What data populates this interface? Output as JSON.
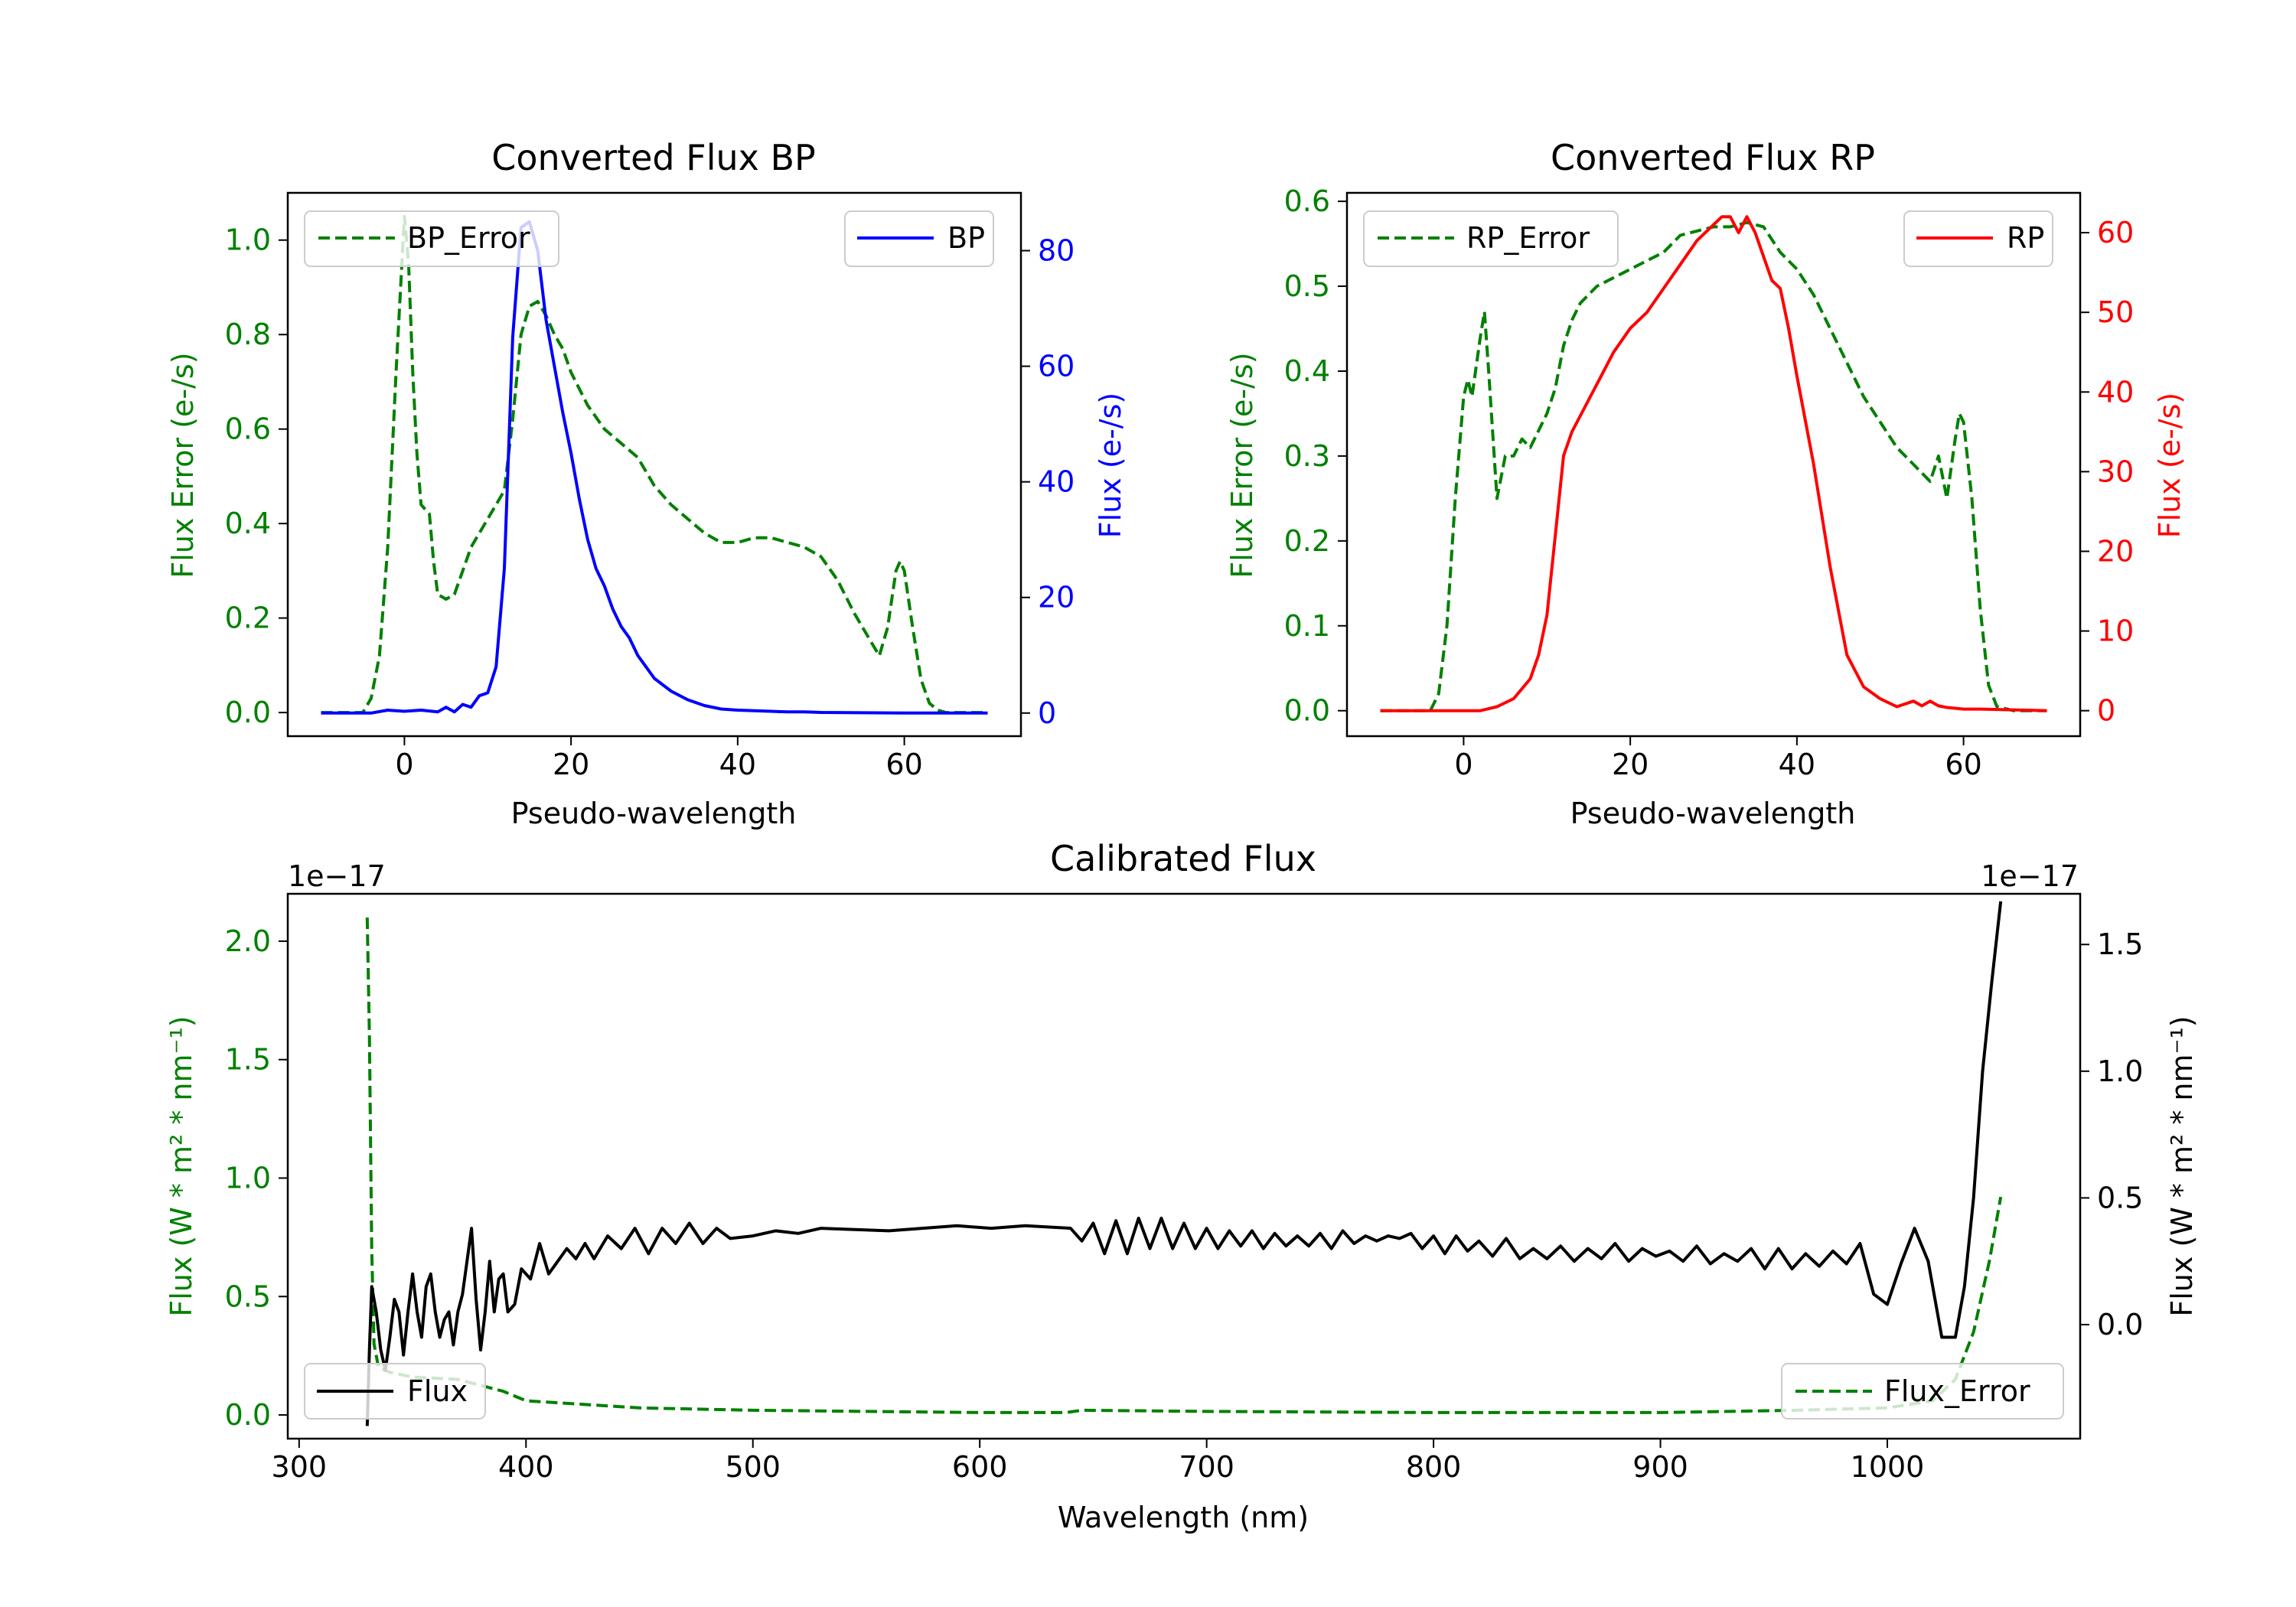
{
  "colors": {
    "error": "#008000",
    "bp": "#0000ff",
    "rp": "#ff0000",
    "flux": "#000000",
    "axis": "#000000",
    "legend_edge": "#cccccc"
  },
  "chart_data": [
    {
      "id": "bp",
      "type": "line",
      "title": "Converted Flux BP",
      "xlabel": "Pseudo-wavelength",
      "ylabel_left": "Flux Error (e-/s)",
      "ylabel_right": "Flux (e-/s)",
      "xlim": [
        -14,
        74
      ],
      "ylim_left": [
        -0.05,
        1.1
      ],
      "ylim_right": [
        -4,
        90
      ],
      "xticks": [
        0,
        20,
        40,
        60
      ],
      "xtick_labels": [
        "0",
        "20",
        "40",
        "60"
      ],
      "yticks_left": [
        0.0,
        0.2,
        0.4,
        0.6,
        0.8,
        1.0
      ],
      "ytick_labels_left": [
        "0.0",
        "0.2",
        "0.4",
        "0.6",
        "0.8",
        "1.0"
      ],
      "yticks_right": [
        0,
        20,
        40,
        60,
        80
      ],
      "ytick_labels_right": [
        "0",
        "20",
        "40",
        "60",
        "80"
      ],
      "legend_left": {
        "label": "BP_Error",
        "placement": "upper left"
      },
      "legend_right": {
        "label": "BP",
        "placement": "upper right"
      },
      "series": [
        {
          "name": "BP_Error",
          "axis": "left",
          "style": "dashed",
          "color": "#008000",
          "x": [
            -10,
            -5,
            -4,
            -3,
            -2,
            -1,
            0,
            0.5,
            1,
            1.5,
            2,
            3,
            3.5,
            4,
            5,
            6,
            7,
            8,
            9,
            10,
            11,
            12,
            13,
            14,
            15,
            16,
            17,
            18,
            19,
            20,
            22,
            24,
            26,
            28,
            30,
            32,
            34,
            36,
            38,
            40,
            42,
            44,
            46,
            48,
            50,
            52,
            54,
            56,
            57,
            58,
            59,
            59.5,
            60,
            61,
            62,
            63,
            64,
            65,
            66,
            68,
            70
          ],
          "y": [
            0.0,
            0.0,
            0.03,
            0.12,
            0.35,
            0.72,
            1.05,
            0.95,
            0.72,
            0.55,
            0.44,
            0.42,
            0.32,
            0.25,
            0.24,
            0.25,
            0.3,
            0.35,
            0.38,
            0.41,
            0.44,
            0.47,
            0.62,
            0.8,
            0.86,
            0.87,
            0.84,
            0.8,
            0.77,
            0.72,
            0.65,
            0.6,
            0.57,
            0.54,
            0.48,
            0.44,
            0.41,
            0.38,
            0.36,
            0.36,
            0.37,
            0.37,
            0.36,
            0.35,
            0.33,
            0.28,
            0.21,
            0.15,
            0.12,
            0.18,
            0.3,
            0.32,
            0.3,
            0.18,
            0.07,
            0.02,
            0.005,
            0.0,
            0.0,
            0.0,
            0.0
          ]
        },
        {
          "name": "BP",
          "axis": "right",
          "style": "solid",
          "color": "#0000ff",
          "x": [
            -10,
            -4,
            -2,
            0,
            2,
            4,
            5,
            6,
            7,
            8,
            9,
            10,
            11,
            12,
            13,
            14,
            15,
            16,
            17,
            18,
            19,
            20,
            21,
            22,
            23,
            24,
            25,
            26,
            27,
            28,
            29,
            30,
            32,
            34,
            36,
            38,
            40,
            42,
            44,
            46,
            48,
            50,
            60,
            70
          ],
          "y": [
            0,
            0,
            0.5,
            0.3,
            0.5,
            0.2,
            1,
            0.2,
            1.5,
            1,
            3,
            3.5,
            8,
            25,
            65,
            84,
            85,
            80,
            68,
            60,
            52,
            45,
            37,
            30,
            25,
            22,
            18,
            15,
            13,
            10,
            8,
            6,
            3.8,
            2.3,
            1.3,
            0.7,
            0.5,
            0.4,
            0.3,
            0.2,
            0.2,
            0.1,
            0,
            0
          ]
        }
      ]
    },
    {
      "id": "rp",
      "type": "line",
      "title": "Converted Flux RP",
      "xlabel": "Pseudo-wavelength",
      "ylabel_left": "Flux Error (e-/s)",
      "ylabel_right": "Flux (e-/s)",
      "xlim": [
        -14,
        74
      ],
      "ylim_left": [
        -0.03,
        0.61
      ],
      "ylim_right": [
        -3.2,
        65
      ],
      "xticks": [
        0,
        20,
        40,
        60
      ],
      "xtick_labels": [
        "0",
        "20",
        "40",
        "60"
      ],
      "yticks_left": [
        0.0,
        0.1,
        0.2,
        0.3,
        0.4,
        0.5,
        0.6
      ],
      "ytick_labels_left": [
        "0.0",
        "0.1",
        "0.2",
        "0.3",
        "0.4",
        "0.5",
        "0.6"
      ],
      "yticks_right": [
        0,
        10,
        20,
        30,
        40,
        50,
        60
      ],
      "ytick_labels_right": [
        "0",
        "10",
        "20",
        "30",
        "40",
        "50",
        "60"
      ],
      "legend_left": {
        "label": "RP_Error",
        "placement": "upper left"
      },
      "legend_right": {
        "label": "RP",
        "placement": "upper right"
      },
      "series": [
        {
          "name": "RP_Error",
          "axis": "left",
          "style": "dashed",
          "color": "#008000",
          "x": [
            -10,
            -4,
            -3,
            -2,
            -1,
            0,
            0.5,
            1,
            2,
            2.5,
            3,
            4,
            5,
            6,
            7,
            8,
            9,
            10,
            11,
            12,
            13,
            14,
            16,
            18,
            20,
            22,
            24,
            26,
            28,
            30,
            32,
            34,
            36,
            38,
            40,
            42,
            44,
            46,
            48,
            50,
            52,
            54,
            55,
            56,
            57,
            58,
            59,
            59.5,
            60,
            61,
            62,
            63,
            64,
            66,
            70
          ],
          "y": [
            0.0,
            0.0,
            0.02,
            0.1,
            0.25,
            0.37,
            0.39,
            0.37,
            0.44,
            0.47,
            0.4,
            0.25,
            0.3,
            0.3,
            0.32,
            0.31,
            0.33,
            0.35,
            0.38,
            0.43,
            0.46,
            0.48,
            0.5,
            0.51,
            0.52,
            0.53,
            0.54,
            0.56,
            0.565,
            0.57,
            0.57,
            0.575,
            0.57,
            0.54,
            0.52,
            0.49,
            0.45,
            0.41,
            0.37,
            0.34,
            0.31,
            0.29,
            0.28,
            0.27,
            0.3,
            0.25,
            0.32,
            0.35,
            0.34,
            0.25,
            0.12,
            0.03,
            0.005,
            0.0,
            0.0
          ]
        },
        {
          "name": "RP",
          "axis": "right",
          "style": "solid",
          "color": "#ff0000",
          "x": [
            -10,
            -4,
            0,
            2,
            4,
            6,
            8,
            9,
            10,
            11,
            12,
            13,
            14,
            16,
            18,
            20,
            22,
            24,
            26,
            28,
            30,
            31,
            32,
            33,
            34,
            35,
            36,
            37,
            38,
            39,
            40,
            42,
            44,
            46,
            48,
            50,
            52,
            54,
            55,
            56,
            57,
            58,
            60,
            62,
            70
          ],
          "y": [
            0,
            0,
            0,
            0,
            0.5,
            1.5,
            4,
            7,
            12,
            22,
            32,
            35,
            37,
            41,
            45,
            48,
            50,
            53,
            56,
            59,
            61,
            62,
            62,
            60,
            62,
            60,
            57,
            54,
            53,
            48,
            42,
            31,
            18,
            7,
            3,
            1.5,
            0.5,
            1.2,
            0.6,
            1.2,
            0.6,
            0.4,
            0.2,
            0.2,
            0
          ]
        }
      ]
    },
    {
      "id": "cal",
      "type": "line",
      "title": "Calibrated Flux",
      "xlabel": "Wavelength (nm)",
      "ylabel_left": "Flux (W * m² * nm⁻¹)",
      "ylabel_right": "Flux (W * m² * nm⁻¹)",
      "offset_left": "1e−17",
      "offset_right": "1e−17",
      "xlim": [
        295,
        1085
      ],
      "ylim_left": [
        -0.1,
        2.2
      ],
      "ylim_right": [
        -0.45,
        1.7
      ],
      "xticks": [
        300,
        400,
        500,
        600,
        700,
        800,
        900,
        1000
      ],
      "xtick_labels": [
        "300",
        "400",
        "500",
        "600",
        "700",
        "800",
        "900",
        "1000"
      ],
      "yticks_left": [
        0.0,
        0.5,
        1.0,
        1.5,
        2.0
      ],
      "ytick_labels_left": [
        "0.0",
        "0.5",
        "1.0",
        "1.5",
        "2.0"
      ],
      "yticks_right": [
        0.0,
        0.5,
        1.0,
        1.5
      ],
      "ytick_labels_right": [
        "0.0",
        "0.5",
        "1.0",
        "1.5"
      ],
      "legend_left": {
        "label": "Flux",
        "placement": "lower left"
      },
      "legend_right": {
        "label": "Flux_Error",
        "placement": "lower right"
      },
      "series": [
        {
          "name": "Flux_Error",
          "axis": "left",
          "style": "dashed",
          "color": "#008000",
          "x": [
            330,
            331,
            332,
            333,
            335,
            340,
            350,
            370,
            390,
            400,
            450,
            500,
            550,
            600,
            638,
            645,
            700,
            800,
            900,
            960,
            1000,
            1020,
            1030,
            1038,
            1045,
            1050
          ],
          "y": [
            2.1,
            1.6,
            0.7,
            0.3,
            0.2,
            0.18,
            0.16,
            0.15,
            0.1,
            0.06,
            0.03,
            0.02,
            0.015,
            0.01,
            0.01,
            0.02,
            0.015,
            0.01,
            0.01,
            0.02,
            0.03,
            0.06,
            0.15,
            0.35,
            0.65,
            0.92
          ]
        },
        {
          "name": "Flux",
          "axis": "right",
          "style": "solid",
          "color": "#000000",
          "x": [
            330,
            331,
            332,
            334,
            336,
            338,
            340,
            342,
            344,
            346,
            348,
            350,
            352,
            354,
            356,
            358,
            360,
            362,
            364,
            366,
            368,
            370,
            372,
            374,
            376,
            378,
            380,
            382,
            384,
            386,
            388,
            390,
            392,
            395,
            398,
            402,
            406,
            410,
            414,
            418,
            422,
            426,
            430,
            436,
            442,
            448,
            454,
            460,
            466,
            472,
            478,
            484,
            490,
            500,
            510,
            520,
            530,
            560,
            590,
            605,
            620,
            640,
            645,
            650,
            655,
            660,
            665,
            670,
            675,
            680,
            685,
            690,
            695,
            700,
            705,
            710,
            715,
            720,
            725,
            730,
            735,
            740,
            745,
            750,
            755,
            760,
            765,
            770,
            775,
            780,
            785,
            790,
            795,
            800,
            805,
            810,
            815,
            820,
            826,
            832,
            838,
            844,
            850,
            856,
            862,
            868,
            874,
            880,
            886,
            892,
            898,
            904,
            910,
            916,
            922,
            928,
            934,
            940,
            946,
            952,
            958,
            964,
            970,
            976,
            982,
            988,
            994,
            1000,
            1006,
            1012,
            1018,
            1024,
            1030,
            1034,
            1038,
            1042,
            1046,
            1050
          ],
          "y": [
            -0.4,
            -0.1,
            0.15,
            0.05,
            -0.1,
            -0.18,
            -0.05,
            0.1,
            0.05,
            -0.12,
            0.05,
            0.2,
            0.05,
            -0.05,
            0.15,
            0.2,
            0.05,
            -0.05,
            0.02,
            0.05,
            -0.08,
            0.05,
            0.12,
            0.25,
            0.38,
            0.1,
            -0.1,
            0.05,
            0.25,
            0.05,
            0.18,
            0.2,
            0.05,
            0.08,
            0.22,
            0.18,
            0.32,
            0.2,
            0.25,
            0.3,
            0.26,
            0.32,
            0.26,
            0.35,
            0.3,
            0.38,
            0.28,
            0.38,
            0.32,
            0.4,
            0.32,
            0.38,
            0.34,
            0.35,
            0.37,
            0.36,
            0.38,
            0.37,
            0.39,
            0.38,
            0.39,
            0.38,
            0.33,
            0.4,
            0.28,
            0.41,
            0.28,
            0.42,
            0.3,
            0.42,
            0.3,
            0.4,
            0.3,
            0.38,
            0.3,
            0.37,
            0.31,
            0.37,
            0.3,
            0.36,
            0.31,
            0.35,
            0.31,
            0.36,
            0.3,
            0.37,
            0.32,
            0.35,
            0.33,
            0.35,
            0.34,
            0.36,
            0.3,
            0.35,
            0.28,
            0.35,
            0.29,
            0.33,
            0.27,
            0.34,
            0.26,
            0.3,
            0.26,
            0.31,
            0.25,
            0.3,
            0.26,
            0.32,
            0.25,
            0.3,
            0.27,
            0.29,
            0.25,
            0.31,
            0.24,
            0.28,
            0.25,
            0.3,
            0.22,
            0.3,
            0.22,
            0.28,
            0.23,
            0.29,
            0.24,
            0.32,
            0.12,
            0.08,
            0.24,
            0.38,
            0.25,
            -0.05,
            -0.05,
            0.15,
            0.5,
            1.0,
            1.35,
            1.67
          ]
        }
      ]
    }
  ]
}
